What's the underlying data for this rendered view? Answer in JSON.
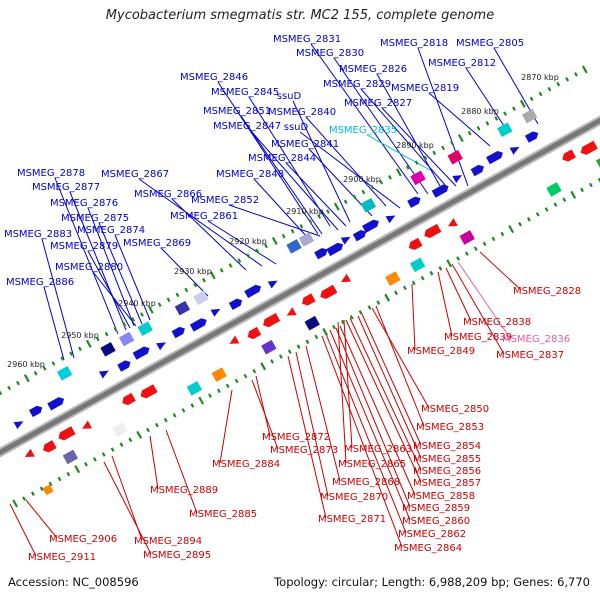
{
  "title": "Mycobacterium smegmatis str. MC2 155, complete genome",
  "accession": "Accession: NC_008596",
  "topology": "Topology: circular; Length: 6,988,209 bp; Genes: 6,770",
  "colors": {
    "top_label": "#0000cc",
    "bottom_label": "#cc0000",
    "ssu_label": "#00bbcc",
    "pink_label": "#e060a0",
    "backbone": "#777777",
    "tick": "#228822"
  },
  "ticks": [
    {
      "label": "2870 kbp"
    },
    {
      "label": "2880 kbp"
    },
    {
      "label": "2890 kbp"
    },
    {
      "label": "2900 kbp"
    },
    {
      "label": "2910 kbp"
    },
    {
      "label": "2920 kbp"
    },
    {
      "label": "2930 kbp"
    },
    {
      "label": "2940 kbp"
    },
    {
      "label": "2950 kbp"
    },
    {
      "label": "2960 kbp"
    }
  ],
  "top_labels": [
    {
      "text": "MSMEG_2831",
      "tone": "blue"
    },
    {
      "text": "MSMEG_2830",
      "tone": "blue"
    },
    {
      "text": "MSMEG_2818",
      "tone": "blue"
    },
    {
      "text": "MSMEG_2805",
      "tone": "blue"
    },
    {
      "text": "MSMEG_2812",
      "tone": "blue"
    },
    {
      "text": "MSMEG_2826",
      "tone": "blue"
    },
    {
      "text": "MSMEG_2846",
      "tone": "blue"
    },
    {
      "text": "MSMEG_2829",
      "tone": "blue"
    },
    {
      "text": "MSMEG_2819",
      "tone": "blue"
    },
    {
      "text": "ssuD",
      "tone": "blue"
    },
    {
      "text": "MSMEG_2845",
      "tone": "blue"
    },
    {
      "text": "MSMEG_2827",
      "tone": "blue"
    },
    {
      "text": "MSMEG_2851",
      "tone": "blue"
    },
    {
      "text": "MSMEG_2840",
      "tone": "blue"
    },
    {
      "text": "MSMEG_2847",
      "tone": "blue"
    },
    {
      "text": "ssuD",
      "tone": "blue"
    },
    {
      "text": "MSMEG_2835",
      "tone": "cyan"
    },
    {
      "text": "MSMEG_2841",
      "tone": "blue"
    },
    {
      "text": "MSMEG_2844",
      "tone": "blue"
    },
    {
      "text": "MSMEG_2878",
      "tone": "blue"
    },
    {
      "text": "MSMEG_2867",
      "tone": "blue"
    },
    {
      "text": "MSMEG_2848",
      "tone": "blue"
    },
    {
      "text": "MSMEG_2877",
      "tone": "blue"
    },
    {
      "text": "MSMEG_2866",
      "tone": "blue"
    },
    {
      "text": "MSMEG_2852",
      "tone": "blue"
    },
    {
      "text": "MSMEG_2876",
      "tone": "blue"
    },
    {
      "text": "MSMEG_2861",
      "tone": "blue"
    },
    {
      "text": "MSMEG_2875",
      "tone": "blue"
    },
    {
      "text": "MSMEG_2883",
      "tone": "blue"
    },
    {
      "text": "MSMEG_2874",
      "tone": "blue"
    },
    {
      "text": "MSMEG_2879",
      "tone": "blue"
    },
    {
      "text": "MSMEG_2869",
      "tone": "blue"
    },
    {
      "text": "MSMEG_2880",
      "tone": "blue"
    },
    {
      "text": "MSMEG_2886",
      "tone": "blue"
    }
  ],
  "bottom_labels": [
    {
      "text": "MSMEG_2828",
      "tone": "red"
    },
    {
      "text": "MSMEG_2838",
      "tone": "red"
    },
    {
      "text": "MSMEG_2839",
      "tone": "red"
    },
    {
      "text": "MSMEG_2836",
      "tone": "pink"
    },
    {
      "text": "MSMEG_2849",
      "tone": "red"
    },
    {
      "text": "MSMEG_2837",
      "tone": "red"
    },
    {
      "text": "MSMEG_2850",
      "tone": "red"
    },
    {
      "text": "MSMEG_2853",
      "tone": "red"
    },
    {
      "text": "MSMEG_2872",
      "tone": "red"
    },
    {
      "text": "MSMEG_2863",
      "tone": "red"
    },
    {
      "text": "MSMEG_2854",
      "tone": "red"
    },
    {
      "text": "MSMEG_2873",
      "tone": "red"
    },
    {
      "text": "MSMEG_2855",
      "tone": "red"
    },
    {
      "text": "MSMEG_2884",
      "tone": "red"
    },
    {
      "text": "MSMEG_2865",
      "tone": "red"
    },
    {
      "text": "MSMEG_2856",
      "tone": "red"
    },
    {
      "text": "MSMEG_2868",
      "tone": "red"
    },
    {
      "text": "MSMEG_2857",
      "tone": "red"
    },
    {
      "text": "MSMEG_2889",
      "tone": "red"
    },
    {
      "text": "MSMEG_2870",
      "tone": "red"
    },
    {
      "text": "MSMEG_2858",
      "tone": "red"
    },
    {
      "text": "MSMEG_2859",
      "tone": "red"
    },
    {
      "text": "MSMEG_2885",
      "tone": "red"
    },
    {
      "text": "MSMEG_2871",
      "tone": "red"
    },
    {
      "text": "MSMEG_2860",
      "tone": "red"
    },
    {
      "text": "MSMEG_2862",
      "tone": "red"
    },
    {
      "text": "MSMEG_2906",
      "tone": "red"
    },
    {
      "text": "MSMEG_2894",
      "tone": "red"
    },
    {
      "text": "MSMEG_2864",
      "tone": "red"
    },
    {
      "text": "MSMEG_2911",
      "tone": "red"
    },
    {
      "text": "MSMEG_2895",
      "tone": "red"
    }
  ]
}
